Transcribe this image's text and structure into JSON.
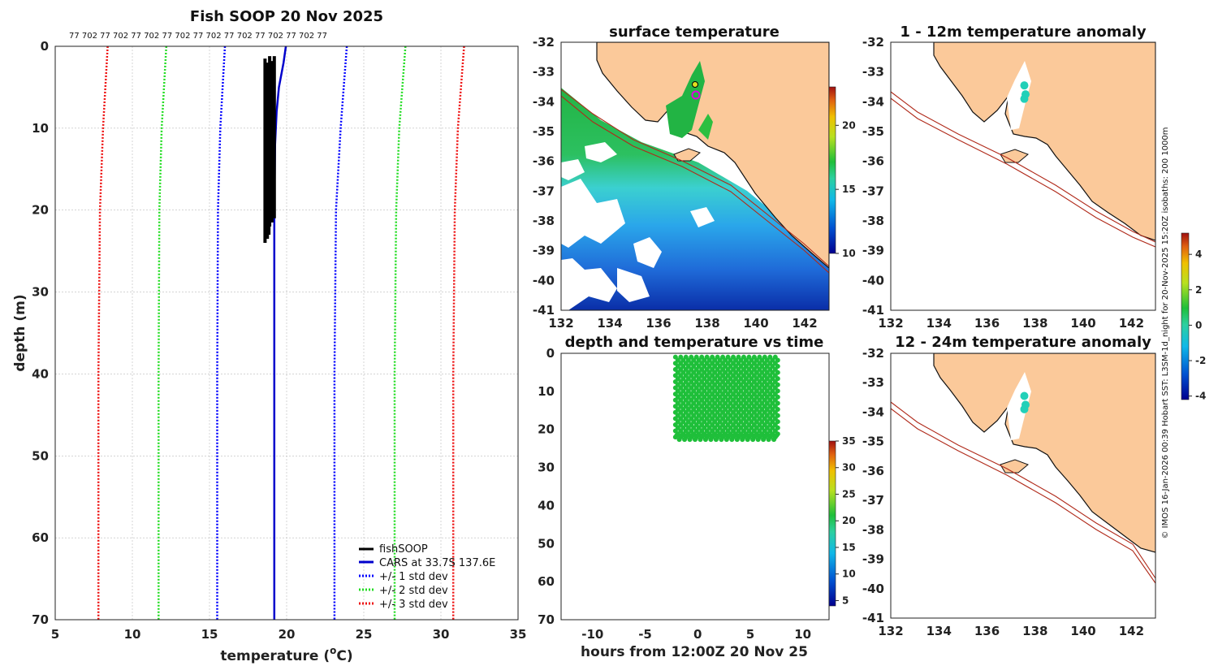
{
  "chart_data": [
    {
      "type": "line",
      "title": "Fish SOOP 20 Nov 2025",
      "xlabel": "temperature (°C)",
      "xlabel_main": "temperature (",
      "xlabel_sup": "o",
      "xlabel_tail": "C)",
      "ylabel": "depth (m)",
      "xlim": [
        5,
        35
      ],
      "ylim": [
        0,
        70
      ],
      "xticks": [
        5,
        10,
        15,
        20,
        25,
        30,
        35
      ],
      "yticks": [
        0,
        10,
        20,
        30,
        40,
        50,
        60,
        70
      ],
      "top_labels": "77 702 77 702 77 702 77 702 77 702 77 702 77 702 77 702 77",
      "legend": {
        "fish": "fishSOOP",
        "cars": "CARS at 33.7S 137.6E",
        "std1": "+/- 1 std dev",
        "std2": "+/- 2 std dev",
        "std3": "+/- 3 std dev"
      },
      "colors": {
        "fish": "#000000",
        "cars": "#0000cc",
        "std1": "#0000ff",
        "std2": "#22dd22",
        "std3": "#ee1111"
      },
      "cars_profile": {
        "depth": [
          0,
          2,
          5,
          8,
          12,
          20,
          70
        ],
        "temp": [
          19.95,
          19.8,
          19.5,
          19.35,
          19.25,
          19.2,
          19.2
        ]
      },
      "std_lines": [
        {
          "key": "std3",
          "side": "left",
          "temp": [
            8.4,
            8.1,
            7.9,
            7.8,
            7.8
          ],
          "depth": [
            0,
            10,
            20,
            40,
            70
          ]
        },
        {
          "key": "std2",
          "side": "left",
          "temp": [
            12.2,
            11.9,
            11.75,
            11.7,
            11.7
          ],
          "depth": [
            0,
            10,
            20,
            40,
            70
          ]
        },
        {
          "key": "std1",
          "side": "left",
          "temp": [
            16.0,
            15.7,
            15.55,
            15.5,
            15.5
          ],
          "depth": [
            0,
            10,
            20,
            40,
            70
          ]
        },
        {
          "key": "std1",
          "side": "right",
          "temp": [
            23.9,
            23.5,
            23.2,
            23.1,
            23.1
          ],
          "depth": [
            0,
            10,
            20,
            40,
            70
          ]
        },
        {
          "key": "std2",
          "side": "right",
          "temp": [
            27.7,
            27.3,
            27.1,
            27.0,
            27.0
          ],
          "depth": [
            0,
            10,
            20,
            40,
            70
          ]
        },
        {
          "key": "std3",
          "side": "right",
          "temp": [
            31.5,
            31.1,
            30.9,
            30.8,
            30.8
          ],
          "depth": [
            0,
            10,
            20,
            40,
            70
          ]
        }
      ],
      "fish_casts": [
        {
          "temp": 18.6,
          "top": 1.5,
          "bottom": 24
        },
        {
          "temp": 18.75,
          "top": 2,
          "bottom": 23.5
        },
        {
          "temp": 18.9,
          "top": 1.2,
          "bottom": 22
        },
        {
          "temp": 19.05,
          "top": 1.8,
          "bottom": 21.5
        },
        {
          "temp": 19.2,
          "top": 1.2,
          "bottom": 21
        },
        {
          "temp": 18.85,
          "top": 3,
          "bottom": 23
        }
      ]
    },
    {
      "type": "heatmap",
      "title": "surface temperature",
      "xlim": [
        132,
        143
      ],
      "ylim": [
        -41,
        -32
      ],
      "xticks": [
        132,
        134,
        136,
        138,
        140,
        142
      ],
      "yticks": [
        -32,
        -33,
        -34,
        -35,
        -36,
        -37,
        -38,
        -39,
        -40,
        -41
      ],
      "colorbar": {
        "min": 10,
        "max": 23,
        "ticks": [
          10,
          15,
          20
        ]
      }
    },
    {
      "type": "scatter",
      "title": "depth and temperature vs time",
      "xlabel": "hours from 12:00Z 20 Nov 25",
      "xlim": [
        -13,
        12.5
      ],
      "ylim": [
        0,
        70
      ],
      "xticks": [
        -10,
        -5,
        0,
        5,
        10
      ],
      "yticks": [
        0,
        10,
        20,
        30,
        40,
        50,
        60,
        70
      ],
      "cast_hours": [
        -2.0,
        -1.5,
        -1.0,
        -0.5,
        0.0,
        0.5,
        1.0,
        1.5,
        2.0,
        2.5,
        3.0,
        3.5,
        4.0,
        4.5,
        5.0,
        5.5,
        6.0,
        6.5,
        7.0,
        7.5
      ],
      "cast_depth": [
        1,
        22
      ],
      "point_color": "#1fbf3a",
      "colorbar": {
        "min": 4,
        "max": 35,
        "ticks": [
          5,
          10,
          15,
          20,
          25,
          30,
          35
        ]
      }
    },
    {
      "type": "heatmap",
      "title": "1 - 12m temperature anomaly",
      "xlim": [
        132,
        143
      ],
      "ylim": [
        -41,
        -32
      ],
      "xticks": [
        132,
        134,
        136,
        138,
        140,
        142
      ],
      "yticks": [
        -32,
        -33,
        -34,
        -35,
        -36,
        -37,
        -38,
        -39,
        -40,
        -41
      ],
      "points": [
        [
          137.55,
          -33.45
        ],
        [
          137.6,
          -33.75
        ],
        [
          137.55,
          -33.9
        ]
      ],
      "point_color": "#22d0b8"
    },
    {
      "type": "heatmap",
      "title": "12 - 24m temperature anomaly",
      "xlim": [
        132,
        143
      ],
      "ylim": [
        -41,
        -32
      ],
      "xticks": [
        132,
        134,
        136,
        138,
        140,
        142
      ],
      "yticks": [
        -32,
        -33,
        -34,
        -35,
        -36,
        -37,
        -38,
        -39,
        -40,
        -41
      ],
      "points": [
        [
          137.55,
          -33.45
        ],
        [
          137.6,
          -33.75
        ],
        [
          137.55,
          -33.9
        ]
      ],
      "point_color": "#22d0b8",
      "colorbar": {
        "min": -4.2,
        "max": 5.2,
        "ticks": [
          -4,
          -2,
          0,
          2,
          4
        ]
      }
    }
  ],
  "side_caption": "© IMOS 16-Jan-2026 00:39 Hobart SST: L3SM-1d_night for 20-Nov-2025 15:20Z isobaths: 200  1000m",
  "map_colors": {
    "land": "#fbc99a",
    "coast": "#111111",
    "isobath": "#b02a1a"
  }
}
